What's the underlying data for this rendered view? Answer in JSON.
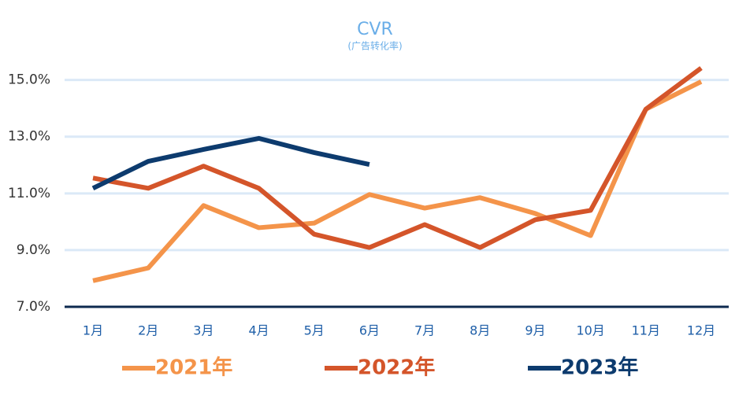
{
  "chart_data": {
    "type": "line",
    "title": "CVR",
    "subtitle": "(广告转化率)",
    "categories": [
      "1月",
      "2月",
      "3月",
      "4月",
      "5月",
      "6月",
      "7月",
      "8月",
      "9月",
      "10月",
      "11月",
      "12月"
    ],
    "series": [
      {
        "name": "2021年",
        "color": "#f4944a",
        "values": [
          7.92,
          8.37,
          10.57,
          9.79,
          9.95,
          10.96,
          10.48,
          10.85,
          10.29,
          9.51,
          13.97,
          14.94
        ]
      },
      {
        "name": "2022年",
        "color": "#d4552a",
        "values": [
          11.54,
          11.18,
          11.96,
          11.18,
          9.56,
          9.09,
          9.9,
          9.09,
          10.07,
          10.4,
          13.97,
          15.42
        ]
      },
      {
        "name": "2023年",
        "color": "#0d3b6e",
        "values": [
          11.18,
          12.13,
          12.55,
          12.94,
          12.44,
          12.02,
          null,
          null,
          null,
          null,
          null,
          null
        ]
      }
    ],
    "ylim": [
      7,
      15.6
    ],
    "yticks": [
      {
        "value": 7,
        "label": "7.0%"
      },
      {
        "value": 9,
        "label": "9.0%"
      },
      {
        "value": 11,
        "label": "11.0%"
      },
      {
        "value": 13,
        "label": "13.0%"
      },
      {
        "value": 15,
        "label": "15.0%"
      }
    ],
    "grid": true
  }
}
